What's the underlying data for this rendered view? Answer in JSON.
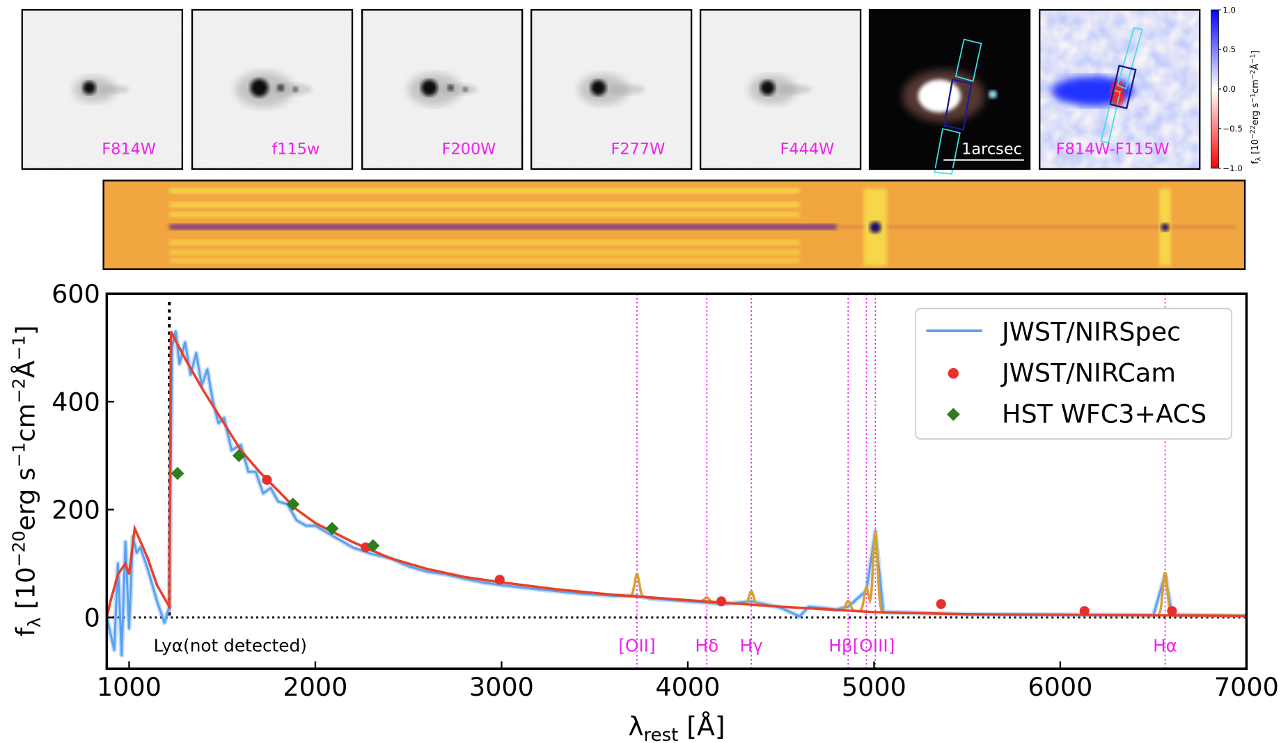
{
  "image_panels": [
    {
      "label": "F814W",
      "kind": "gray",
      "scale": 0.8
    },
    {
      "label": "f115w",
      "kind": "gray",
      "scale": 1.1
    },
    {
      "label": "F200W",
      "kind": "gray",
      "scale": 1.0
    },
    {
      "label": "F277W",
      "kind": "gray",
      "scale": 0.95
    },
    {
      "label": "F444W",
      "kind": "gray",
      "scale": 0.9
    },
    {
      "label": "1arcsec",
      "kind": "rgb"
    },
    {
      "label": "F814W-F115W",
      "kind": "diff"
    }
  ],
  "colorbar": {
    "ticks": [
      "1.0",
      "0.5",
      "0.0",
      "−0.5",
      "−1.0"
    ],
    "label_main": "f",
    "label_sub": "λ",
    "label_rest": " [10",
    "label_exp": "−22",
    "label_units": "erg s",
    "label_units_exp": "−1",
    "label_units2": "cm",
    "label_units2_exp": "−2",
    "label_units3": "Å",
    "label_units3_exp": "−1",
    "label_close": "]",
    "colors": [
      "#0000ff",
      "#ffffff",
      "#ff0000"
    ]
  },
  "colors": {
    "label_magenta": "#ee22ee",
    "nirspec": "#5aa0f0",
    "model": "#e8402a",
    "emission_model": "#d9a030",
    "nircam": "#e8302a",
    "hst": "#2e7d1e",
    "spectrum2d_bg": "#f2a640",
    "spectrum2d_stripe": "#f7e04a",
    "spectrum2d_trace": "#6a2a90"
  },
  "chart_data": {
    "type": "line",
    "xlabel_main": "λ",
    "xlabel_sub": "rest",
    "xlabel_rest": " [Å]",
    "ylabel_main": "f",
    "ylabel_sub": "λ",
    "ylabel_rest": " [10",
    "ylabel_exp": "−20",
    "ylabel_u1": "erg s",
    "ylabel_u1e": "−1",
    "ylabel_u2": "cm",
    "ylabel_u2e": "−2",
    "ylabel_u3": "Å",
    "ylabel_u3e": "−1",
    "ylabel_close": "]",
    "xlim": [
      880,
      7000
    ],
    "ylim": [
      -95,
      600
    ],
    "xticks": [
      1000,
      2000,
      3000,
      4000,
      5000,
      6000,
      7000
    ],
    "yticks": [
      0,
      200,
      400,
      600
    ],
    "zero_line": "dotted",
    "legend_position": "top-right",
    "lya": {
      "wavelength": 1216,
      "label": "Lyα(not detected)"
    },
    "emission_lines": [
      {
        "name": "[OII]",
        "wavelength": 3727,
        "peak": 42,
        "show_label": true
      },
      {
        "name": "Hδ",
        "wavelength": 4102,
        "peak": 8,
        "show_label": true
      },
      {
        "name": "Hγ",
        "wavelength": 4341,
        "peak": 25,
        "show_label": true
      },
      {
        "name": "Hβ",
        "wavelength": 4861,
        "peak": 18,
        "show_label": false
      },
      {
        "name": "[OIII]",
        "wavelength": 4959,
        "peak": 45,
        "show_label": false
      },
      {
        "name": "[OIII]",
        "wavelength": 5007,
        "peak": 150,
        "show_label": false
      },
      {
        "name": "Hα",
        "wavelength": 6563,
        "peak": 80,
        "show_label": true
      }
    ],
    "line_label_combined": "Hβ[OIII]",
    "series": [
      {
        "name": "JWST/NIRSpec",
        "style": "line",
        "x": [
          880,
          920,
          940,
          960,
          980,
          1000,
          1020,
          1040,
          1060,
          1100,
          1150,
          1190,
          1216,
          1230,
          1250,
          1270,
          1300,
          1330,
          1360,
          1390,
          1420,
          1450,
          1480,
          1510,
          1550,
          1600,
          1640,
          1680,
          1720,
          1760,
          1800,
          1850,
          1900,
          1950,
          2000,
          2100,
          2200,
          2300,
          2400,
          2500,
          2600,
          2700,
          2800,
          2900,
          3000,
          3200,
          3400,
          3600,
          3727,
          3800,
          4000,
          4200,
          4341,
          4500,
          4600,
          4650,
          4800,
          4861,
          4959,
          5007,
          5050,
          5500,
          6000,
          6500,
          6563,
          6600,
          7000
        ],
        "y": [
          0,
          -60,
          100,
          -70,
          140,
          -20,
          150,
          120,
          130,
          90,
          30,
          -10,
          20,
          500,
          530,
          470,
          510,
          450,
          490,
          430,
          460,
          400,
          360,
          370,
          310,
          320,
          270,
          270,
          230,
          240,
          215,
          210,
          180,
          170,
          170,
          150,
          130,
          118,
          110,
          95,
          85,
          80,
          72,
          65,
          60,
          52,
          45,
          40,
          40,
          35,
          30,
          25,
          30,
          18,
          2,
          20,
          15,
          20,
          50,
          160,
          10,
          6,
          5,
          4,
          80,
          5,
          3
        ]
      },
      {
        "name": "JWST/NIRCam",
        "style": "circle",
        "x": [
          1740,
          2270,
          2990,
          4180,
          5360,
          6130,
          6600
        ],
        "y": [
          255,
          130,
          70,
          30,
          25,
          12,
          12
        ]
      },
      {
        "name": "HST WFC3+ACS",
        "style": "diamond",
        "x": [
          1260,
          1590,
          1880,
          2090,
          2310
        ],
        "y": [
          267,
          300,
          210,
          165,
          133
        ]
      },
      {
        "style": "model-line",
        "x": [
          880,
          900,
          940,
          980,
          1000,
          1030,
          1100,
          1150,
          1216,
          1225,
          1300,
          1400,
          1500,
          1600,
          1700,
          1800,
          1900,
          2000,
          2200,
          2400,
          2600,
          2800,
          3000,
          3300,
          3600,
          4000,
          4500,
          5000,
          5500,
          6000,
          6500,
          7000
        ],
        "y": [
          0,
          30,
          80,
          100,
          80,
          165,
          110,
          60,
          20,
          530,
          480,
          420,
          365,
          310,
          270,
          235,
          200,
          175,
          140,
          110,
          90,
          75,
          65,
          52,
          42,
          32,
          20,
          10,
          6,
          5,
          4,
          3
        ]
      }
    ]
  }
}
